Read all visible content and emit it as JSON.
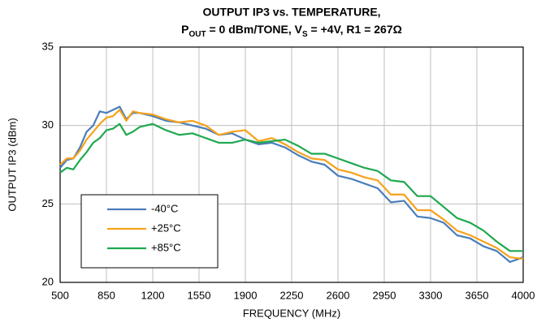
{
  "chart_data": {
    "type": "line",
    "title": "OUTPUT IP3 vs. TEMPERATURE,",
    "subtitle": [
      {
        "text": "P"
      },
      {
        "text": "OUT",
        "subscript": true
      },
      {
        "text": " = 0 dBm/TONE, V"
      },
      {
        "text": "S",
        "subscript": true
      },
      {
        "text": " = +4V, R1 = 267Ω"
      }
    ],
    "x_label": "FREQUENCY (MHz)",
    "y_label": "OUTPUT IP3 (dBm)",
    "x": [
      500,
      550,
      600,
      650,
      700,
      750,
      800,
      850,
      900,
      950,
      1000,
      1050,
      1100,
      1200,
      1300,
      1400,
      1500,
      1600,
      1700,
      1800,
      1900,
      2000,
      2100,
      2200,
      2300,
      2400,
      2500,
      2600,
      2700,
      2800,
      2900,
      3000,
      3100,
      3200,
      3300,
      3400,
      3500,
      3600,
      3700,
      3800,
      3900,
      4000
    ],
    "series": [
      {
        "name": "-40°C",
        "color": "#4a7ebb",
        "values": [
          27.3,
          27.8,
          27.9,
          28.6,
          29.6,
          30.0,
          30.9,
          30.8,
          31.0,
          31.2,
          30.4,
          30.8,
          30.8,
          30.6,
          30.3,
          30.2,
          30.0,
          29.8,
          29.4,
          29.5,
          29.1,
          28.8,
          28.9,
          28.6,
          28.1,
          27.7,
          27.5,
          26.8,
          26.6,
          26.3,
          26.0,
          25.1,
          25.2,
          24.2,
          24.1,
          23.8,
          23.0,
          22.8,
          22.3,
          22.0,
          21.3,
          21.6
        ]
      },
      {
        "name": "+25°C",
        "color": "#f7a21b",
        "values": [
          27.5,
          27.9,
          27.9,
          28.4,
          29.1,
          29.6,
          30.1,
          30.5,
          30.6,
          31.0,
          30.3,
          30.9,
          30.8,
          30.7,
          30.4,
          30.2,
          30.3,
          30.0,
          29.4,
          29.6,
          29.7,
          29.0,
          29.2,
          28.8,
          28.3,
          27.9,
          27.8,
          27.2,
          27.0,
          26.7,
          26.5,
          25.6,
          25.6,
          24.6,
          24.6,
          24.0,
          23.3,
          23.0,
          22.6,
          22.2,
          21.6,
          21.5
        ]
      },
      {
        "name": "+85°C",
        "color": "#1fa84f",
        "values": [
          27.0,
          27.3,
          27.2,
          27.8,
          28.3,
          28.9,
          29.2,
          29.7,
          29.8,
          30.1,
          29.4,
          29.6,
          29.9,
          30.1,
          29.7,
          29.4,
          29.5,
          29.2,
          28.9,
          28.9,
          29.1,
          28.9,
          29.0,
          29.1,
          28.7,
          28.2,
          28.2,
          27.9,
          27.6,
          27.3,
          27.1,
          26.5,
          26.4,
          25.5,
          25.5,
          24.8,
          24.1,
          23.8,
          23.3,
          22.6,
          22.0,
          22.0
        ]
      }
    ],
    "xlim": [
      500,
      4000
    ],
    "xticks": [
      500,
      850,
      1200,
      1550,
      1900,
      2250,
      2600,
      2950,
      3300,
      3650,
      4000
    ],
    "ylim": [
      20,
      35
    ],
    "yticks": [
      20,
      25,
      30,
      35
    ],
    "grid": true,
    "legend": "lower left"
  }
}
